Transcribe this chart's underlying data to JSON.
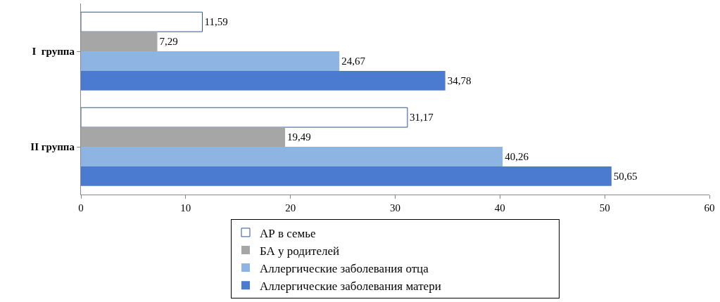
{
  "chart_data": {
    "type": "bar",
    "orientation": "horizontal",
    "categories": [
      "I  группа",
      "II группа"
    ],
    "series": [
      {
        "name": "АР в семье",
        "color": "#ffffff",
        "values": [
          11.59,
          31.17
        ],
        "value_labels": [
          "11,59",
          "31,17"
        ]
      },
      {
        "name": "БА у родителей",
        "color": "#a6a6a6",
        "values": [
          7.29,
          19.49
        ],
        "value_labels": [
          "7,29",
          "19,49"
        ]
      },
      {
        "name": "Аллергические заболевания отца",
        "color": "#8eb4e3",
        "values": [
          24.67,
          40.26
        ],
        "value_labels": [
          "24,67",
          "40,26"
        ]
      },
      {
        "name": "Аллергические заболевания матери",
        "color": "#4a7bd0",
        "values": [
          34.78,
          50.65
        ],
        "value_labels": [
          "34,78",
          "50,65"
        ]
      }
    ],
    "xlim": [
      0,
      60
    ],
    "xticks": [
      0,
      10,
      20,
      30,
      40,
      50,
      60
    ],
    "legend": "bottom"
  }
}
